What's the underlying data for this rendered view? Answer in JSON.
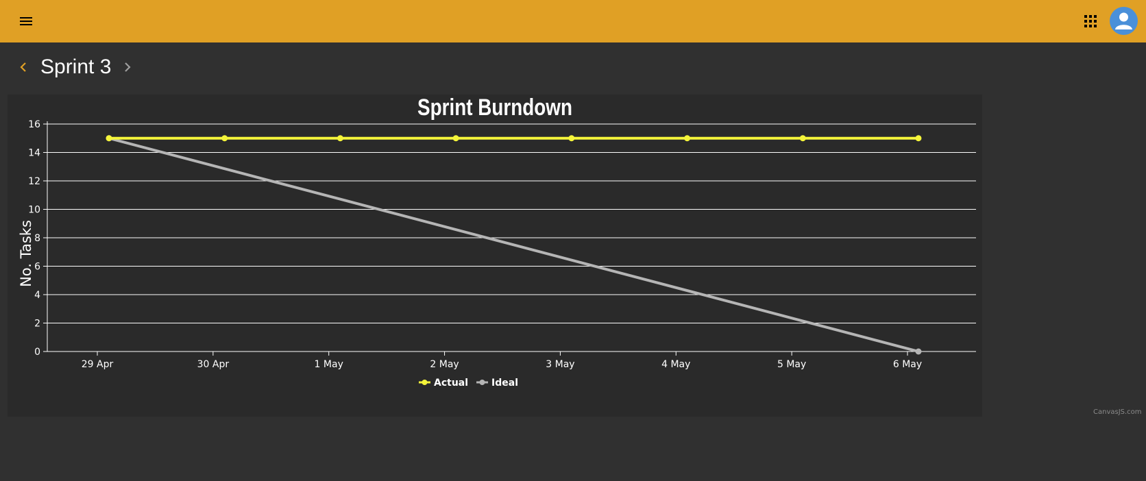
{
  "header": {
    "menu_icon": "menu-icon",
    "apps_icon": "apps-grid-icon",
    "avatar_icon": "user-avatar-icon",
    "background_color": "#e0a025"
  },
  "sprint_nav": {
    "title": "Sprint 3",
    "prev_icon": "chevron-left-icon",
    "next_icon": "chevron-right-icon",
    "prev_color": "#e0a025",
    "next_color": "#9e9e9e"
  },
  "chart_data": {
    "type": "line",
    "title": "Sprint Burndown",
    "ylabel": "No. Tasks",
    "xlabel": "",
    "ylim": [
      0,
      16
    ],
    "yticks": [
      0,
      2,
      4,
      6,
      8,
      10,
      12,
      14,
      16
    ],
    "categories": [
      "29 Apr",
      "30 Apr",
      "1 May",
      "2 May",
      "3 May",
      "4 May",
      "5 May",
      "6 May"
    ],
    "grid": true,
    "legend_position": "bottom-center",
    "series": [
      {
        "name": "Actual",
        "color": "#f5f53a",
        "values": [
          15,
          15,
          15,
          15,
          15,
          15,
          15,
          15
        ]
      },
      {
        "name": "Ideal",
        "color": "#b5b5b5",
        "values": [
          15,
          null,
          null,
          null,
          null,
          null,
          null,
          0
        ]
      }
    ]
  },
  "credit": "CanvasJS.com"
}
